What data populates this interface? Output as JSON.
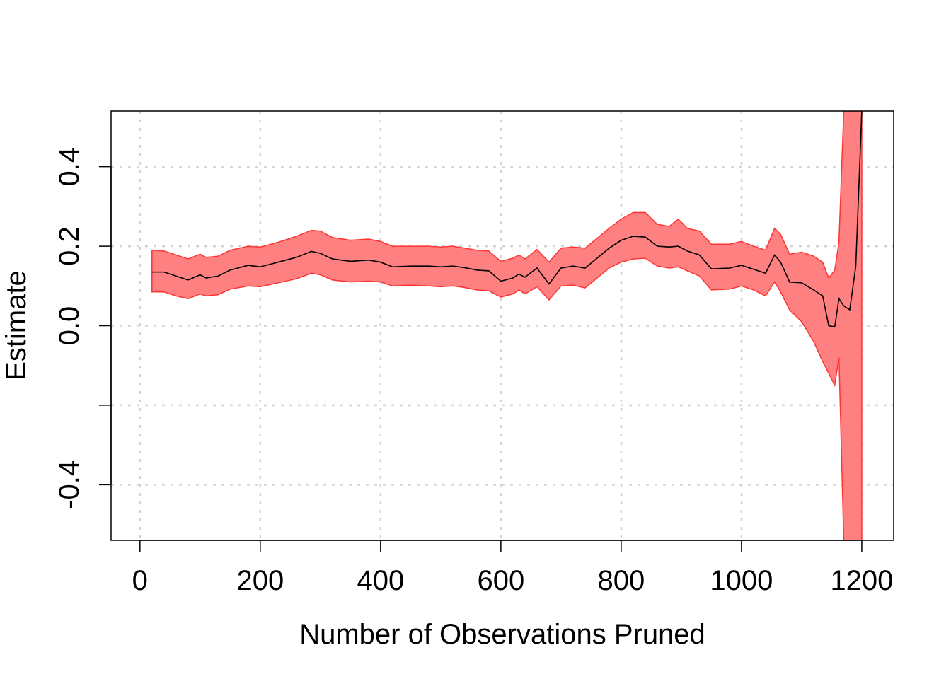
{
  "chart_data": {
    "type": "line",
    "xlabel": "Number of Observations Pruned",
    "ylabel": "Estimate",
    "xlim": [
      -48,
      1253
    ],
    "ylim": [
      -0.54,
      0.54
    ],
    "x_ticks": [
      0,
      200,
      400,
      600,
      800,
      1000,
      1200
    ],
    "x_tick_labels": [
      "0",
      "200",
      "400",
      "600",
      "800",
      "1000",
      "1200"
    ],
    "y_ticks": [
      -0.4,
      -0.2,
      0.0,
      0.2,
      0.4
    ],
    "y_tick_labels": [
      "-0.4",
      "",
      "0.0",
      "0.2",
      "0.4"
    ],
    "grid": true,
    "colors": {
      "line": "#000000",
      "band_fill": "#ff8080",
      "band_edge": "#ff3333",
      "grid": "#d3d3d3"
    },
    "series": [
      {
        "x": [
          20,
          40,
          60,
          80,
          100,
          110,
          130,
          150,
          180,
          200,
          230,
          260,
          285,
          300,
          320,
          350,
          380,
          400,
          420,
          450,
          480,
          500,
          520,
          540,
          560,
          580,
          600,
          620,
          630,
          640,
          660,
          680,
          700,
          720,
          740,
          760,
          780,
          800,
          820,
          840,
          860,
          880,
          895,
          910,
          930,
          950,
          980,
          1000,
          1020,
          1040,
          1055,
          1065,
          1080,
          1100,
          1120,
          1135,
          1145,
          1155,
          1162,
          1170,
          1180,
          1190,
          1200
        ],
        "y": [
          0.135,
          0.135,
          0.125,
          0.115,
          0.128,
          0.12,
          0.125,
          0.14,
          0.152,
          0.148,
          0.16,
          0.172,
          0.187,
          0.182,
          0.168,
          0.162,
          0.165,
          0.16,
          0.148,
          0.15,
          0.15,
          0.148,
          0.15,
          0.146,
          0.14,
          0.138,
          0.112,
          0.12,
          0.13,
          0.122,
          0.145,
          0.105,
          0.145,
          0.15,
          0.145,
          0.17,
          0.195,
          0.215,
          0.225,
          0.223,
          0.2,
          0.198,
          0.2,
          0.188,
          0.178,
          0.143,
          0.145,
          0.152,
          0.142,
          0.132,
          0.178,
          0.16,
          0.11,
          0.108,
          0.09,
          0.075,
          0.0,
          -0.003,
          0.068,
          0.05,
          0.04,
          0.15,
          0.54
        ],
        "lower": [
          0.085,
          0.085,
          0.075,
          0.068,
          0.08,
          0.075,
          0.078,
          0.092,
          0.1,
          0.098,
          0.108,
          0.118,
          0.132,
          0.128,
          0.115,
          0.11,
          0.112,
          0.11,
          0.1,
          0.102,
          0.1,
          0.098,
          0.1,
          0.096,
          0.09,
          0.088,
          0.072,
          0.08,
          0.09,
          0.08,
          0.098,
          0.065,
          0.1,
          0.102,
          0.095,
          0.12,
          0.145,
          0.16,
          0.168,
          0.17,
          0.15,
          0.145,
          0.148,
          0.138,
          0.125,
          0.09,
          0.092,
          0.1,
          0.09,
          0.075,
          0.11,
          0.085,
          0.04,
          0.01,
          -0.04,
          -0.09,
          -0.12,
          -0.15,
          -0.08,
          -0.54,
          -0.54,
          -0.54,
          -0.54
        ],
        "upper": [
          0.19,
          0.188,
          0.178,
          0.168,
          0.18,
          0.172,
          0.175,
          0.19,
          0.2,
          0.198,
          0.21,
          0.225,
          0.24,
          0.238,
          0.222,
          0.215,
          0.218,
          0.212,
          0.2,
          0.2,
          0.2,
          0.198,
          0.2,
          0.195,
          0.19,
          0.188,
          0.162,
          0.17,
          0.178,
          0.168,
          0.192,
          0.16,
          0.195,
          0.198,
          0.195,
          0.22,
          0.245,
          0.268,
          0.285,
          0.285,
          0.255,
          0.25,
          0.268,
          0.245,
          0.238,
          0.205,
          0.205,
          0.212,
          0.2,
          0.19,
          0.245,
          0.23,
          0.18,
          0.185,
          0.175,
          0.16,
          0.12,
          0.14,
          0.21,
          0.54,
          0.54,
          0.54,
          0.54
        ]
      }
    ]
  }
}
